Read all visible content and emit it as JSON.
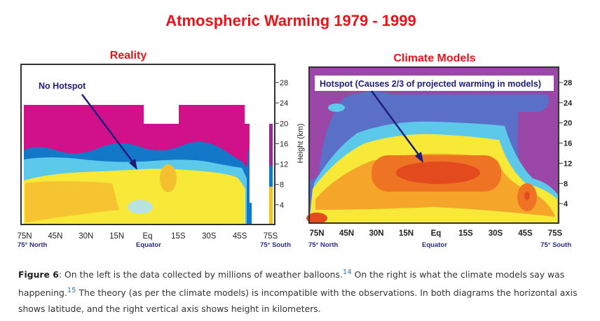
{
  "figure": {
    "title": "Atmospheric Warming 1979 - 1999",
    "title_color": "#e8141c",
    "left_panel": {
      "title": "Reality",
      "annotation": "No Hotspot",
      "x_ticks": [
        "75N",
        "45N",
        "30N",
        "15N",
        "Eq",
        "15S",
        "30S",
        "45S",
        "75S"
      ],
      "x_sublabels": {
        "left": "75° North",
        "center": "Equator",
        "right": "75° South"
      },
      "y_ticks": [
        "28",
        "24",
        "20",
        "16",
        "12",
        "8",
        "4"
      ],
      "y_label": "Height (km)"
    },
    "right_panel": {
      "title": "Climate Models",
      "annotation": "Hotspot (Causes 2/3 of projected warming in models)",
      "x_ticks": [
        "75N",
        "45N",
        "30N",
        "15N",
        "Eq",
        "15S",
        "30S",
        "45S",
        "75S"
      ],
      "x_sublabels": {
        "left": "75° North",
        "center": "Equator",
        "right": "75° South"
      },
      "y_ticks": [
        "28",
        "24",
        "20",
        "16",
        "12",
        "8",
        "4"
      ]
    },
    "colors": {
      "magenta": "#d0118a",
      "purple": "#9a47a8",
      "blue": "#1478c8",
      "cyan": "#5cc8ea",
      "yellow": "#f8e838",
      "orange": "#f5a52a",
      "red": "#e34a1e",
      "annotation": "#1e1e7a"
    }
  },
  "caption": {
    "label": "Figure 6",
    "text1": ": On the left is the data collected by millions of weather balloons.",
    "ref1": "14",
    "text2": " On the right is what the climate models say was happening.",
    "ref2": "15",
    "text3": " The theory (as per the climate models) is incompatible with the observations. In both diagrams the horizontal axis shows latitude, and the right vertical axis shows height in kilometers."
  }
}
